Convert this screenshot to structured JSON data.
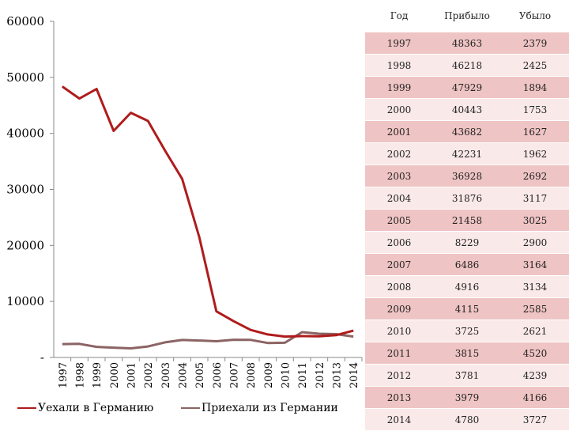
{
  "chart_data": {
    "type": "line",
    "title": "",
    "xlabel": "",
    "ylabel": "",
    "x": [
      "1997",
      "1998",
      "1999",
      "2000",
      "2001",
      "2002",
      "2003",
      "2004",
      "2005",
      "2006",
      "2007",
      "2008",
      "2009",
      "2010",
      "2011",
      "2012",
      "2013",
      "2014"
    ],
    "ylim": [
      0,
      60000
    ],
    "yticks": [
      "-",
      "10000",
      "20000",
      "30000",
      "40000",
      "50000",
      "60000"
    ],
    "grid": false,
    "legend_position": "bottom",
    "series": [
      {
        "name": "Уехали в Германию",
        "color": "#b01c1c",
        "values": [
          48363,
          46218,
          47929,
          40443,
          43682,
          42231,
          36928,
          31876,
          21458,
          8229,
          6486,
          4916,
          4115,
          3725,
          3815,
          3781,
          3979,
          4780
        ]
      },
      {
        "name": "Приехали из Германии",
        "color": "#8c6464",
        "values": [
          2379,
          2425,
          1894,
          1753,
          1627,
          1962,
          2692,
          3117,
          3025,
          2900,
          3164,
          3134,
          2585,
          2621,
          4520,
          4239,
          4166,
          3727
        ]
      }
    ]
  },
  "table": {
    "headers": [
      "Год",
      "Прибыло",
      "Убыло"
    ],
    "rows": [
      [
        "1997",
        "48363",
        "2379"
      ],
      [
        "1998",
        "46218",
        "2425"
      ],
      [
        "1999",
        "47929",
        "1894"
      ],
      [
        "2000",
        "40443",
        "1753"
      ],
      [
        "2001",
        "43682",
        "1627"
      ],
      [
        "2002",
        "42231",
        "1962"
      ],
      [
        "2003",
        "36928",
        "2692"
      ],
      [
        "2004",
        "31876",
        "3117"
      ],
      [
        "2005",
        "21458",
        "3025"
      ],
      [
        "2006",
        "8229",
        "2900"
      ],
      [
        "2007",
        "6486",
        "3164"
      ],
      [
        "2008",
        "4916",
        "3134"
      ],
      [
        "2009",
        "4115",
        "2585"
      ],
      [
        "2010",
        "3725",
        "2621"
      ],
      [
        "2011",
        "3815",
        "4520"
      ],
      [
        "2012",
        "3781",
        "4239"
      ],
      [
        "2013",
        "3979",
        "4166"
      ],
      [
        "2014",
        "4780",
        "3727"
      ]
    ]
  }
}
